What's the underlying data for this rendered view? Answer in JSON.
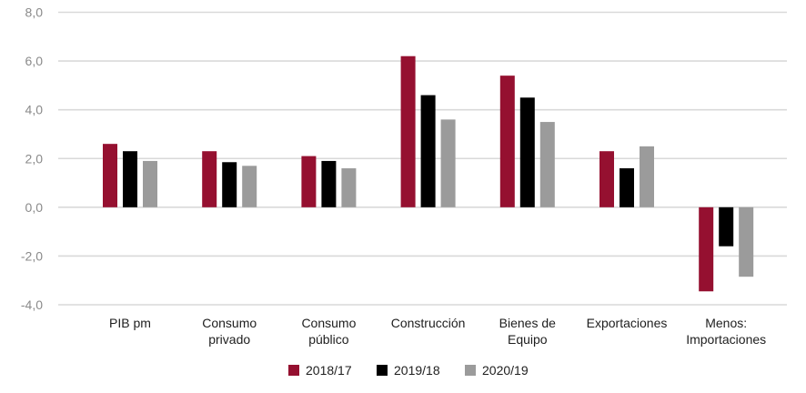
{
  "chart_data": {
    "type": "bar",
    "title": "",
    "xlabel": "",
    "ylabel": "",
    "ylim": [
      -4,
      8
    ],
    "yticks": [
      8,
      6,
      4,
      2,
      0,
      -2,
      -4
    ],
    "ytick_labels": [
      "8,0",
      "6,0",
      "4,0",
      "2,0",
      "0,0",
      "-2,0",
      "-4,0"
    ],
    "grid": true,
    "legend_position": "bottom",
    "categories": [
      [
        "PIB pm"
      ],
      [
        "Consumo",
        "privado"
      ],
      [
        "Consumo",
        "público"
      ],
      [
        "Construcción"
      ],
      [
        "Bienes de",
        "Equipo"
      ],
      [
        "Exportaciones"
      ],
      [
        "Menos:",
        "Importaciones"
      ]
    ],
    "series": [
      {
        "name": "2018/17",
        "color": "#951030",
        "values": [
          2.6,
          2.3,
          2.1,
          6.2,
          5.4,
          2.3,
          -3.45
        ]
      },
      {
        "name": "2019/18",
        "color": "#000000",
        "values": [
          2.3,
          1.85,
          1.9,
          4.6,
          4.5,
          1.6,
          -1.6
        ]
      },
      {
        "name": "2020/19",
        "color": "#9b9b9b",
        "values": [
          1.9,
          1.7,
          1.6,
          3.6,
          3.5,
          2.5,
          -2.85
        ]
      }
    ]
  }
}
